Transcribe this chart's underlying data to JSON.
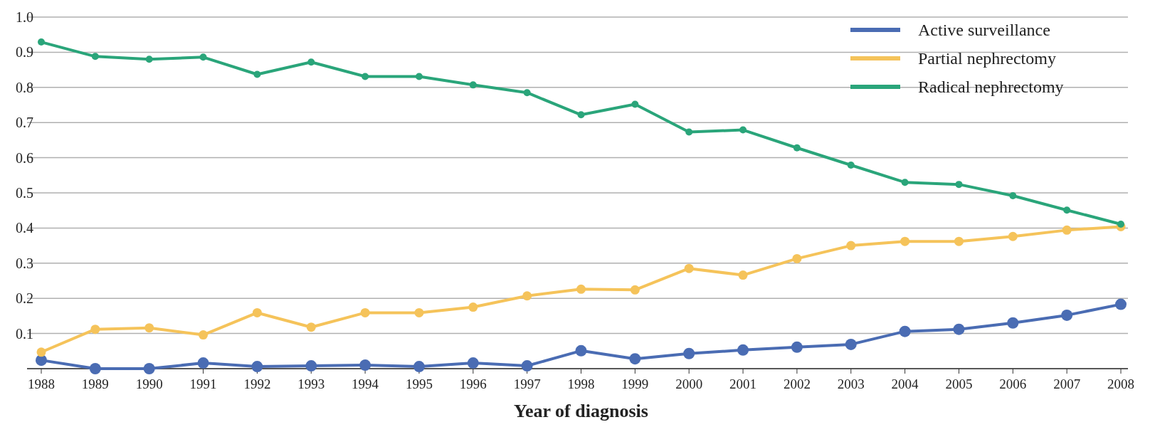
{
  "chart_data": {
    "type": "line",
    "xlabel": "Year of diagnosis",
    "categories": [
      "1988",
      "1989",
      "1990",
      "1991",
      "1992",
      "1993",
      "1994",
      "1995",
      "1996",
      "1997",
      "1998",
      "1999",
      "2000",
      "2001",
      "2002",
      "2003",
      "2004",
      "2005",
      "2006",
      "2007",
      "2008"
    ],
    "series": [
      {
        "name": "Active surveillance",
        "color": "#4a6cb3",
        "values": [
          0.024,
          0,
          0,
          0.016,
          0.006,
          0.008,
          0.01,
          0.006,
          0.016,
          0.008,
          0.051,
          0.028,
          0.043,
          0.053,
          0.061,
          0.069,
          0.106,
          0.112,
          0.13,
          0.152,
          0.183
        ]
      },
      {
        "name": "Partial nephrectomy",
        "color": "#f5c35a",
        "values": [
          0.047,
          0.112,
          0.116,
          0.096,
          0.159,
          0.118,
          0.159,
          0.159,
          0.175,
          0.207,
          0.226,
          0.224,
          0.285,
          0.266,
          0.313,
          0.35,
          0.362,
          0.362,
          0.376,
          0.394,
          0.404
        ]
      },
      {
        "name": "Radical nephrectomy",
        "color": "#2aa57a",
        "values": [
          0.929,
          0.888,
          0.88,
          0.886,
          0.837,
          0.872,
          0.831,
          0.831,
          0.807,
          0.785,
          0.722,
          0.752,
          0.673,
          0.679,
          0.628,
          0.579,
          0.53,
          0.524,
          0.492,
          0.451,
          0.411
        ]
      }
    ],
    "ylim": [
      0,
      1
    ],
    "yticks": [
      {
        "value": 0,
        "label": null
      },
      0.1,
      0.2,
      0.3,
      0.4,
      0.5,
      0.6,
      0.7,
      0.8,
      0.9,
      {
        "value": 1,
        "label": "1.0"
      }
    ],
    "grid": "y",
    "legend": "top right",
    "marker": "circle",
    "line_style": "solid"
  }
}
